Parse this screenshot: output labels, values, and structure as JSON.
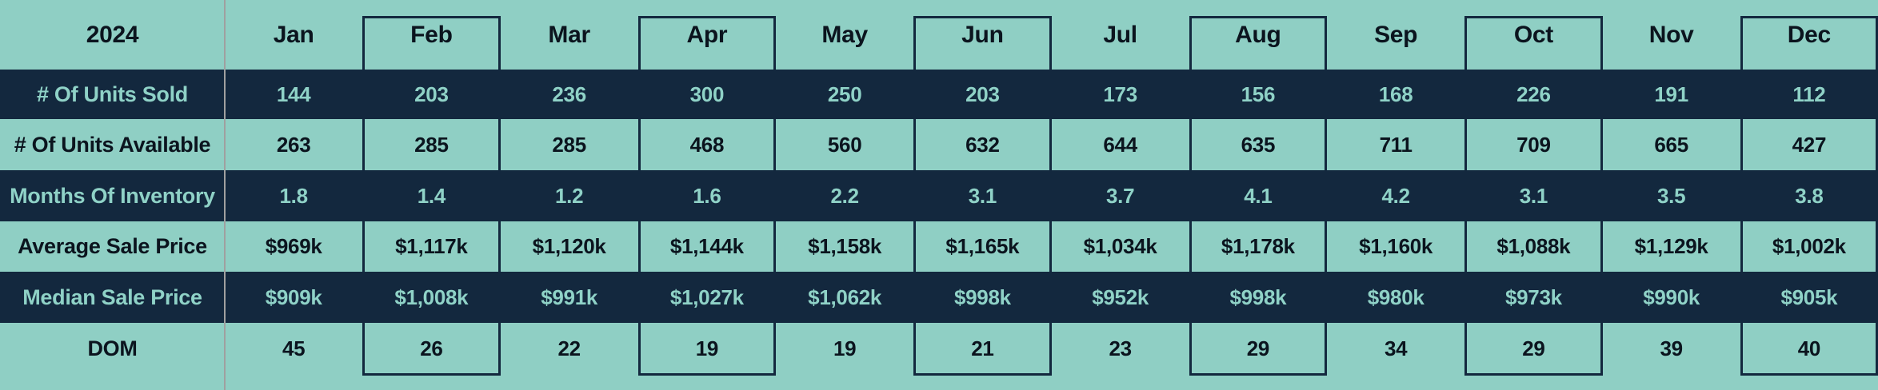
{
  "table": {
    "year_label": "2024",
    "months": [
      "Jan",
      "Feb",
      "Mar",
      "Apr",
      "May",
      "Jun",
      "Jul",
      "Aug",
      "Sep",
      "Oct",
      "Nov",
      "Dec"
    ],
    "rows": [
      {
        "label": "# Of Units Sold",
        "theme": "dark",
        "values": [
          "144",
          "203",
          "236",
          "300",
          "250",
          "203",
          "173",
          "156",
          "168",
          "226",
          "191",
          "112"
        ]
      },
      {
        "label": "# Of Units Available",
        "theme": "light",
        "values": [
          "263",
          "285",
          "285",
          "468",
          "560",
          "632",
          "644",
          "635",
          "711",
          "709",
          "665",
          "427"
        ]
      },
      {
        "label": "Months Of Inventory",
        "theme": "dark",
        "values": [
          "1.8",
          "1.4",
          "1.2",
          "1.6",
          "2.2",
          "3.1",
          "3.7",
          "4.1",
          "4.2",
          "3.1",
          "3.5",
          "3.8"
        ]
      },
      {
        "label": "Average Sale Price",
        "theme": "light",
        "values": [
          "$969k",
          "$1,117k",
          "$1,120k",
          "$1,144k",
          "$1,158k",
          "$1,165k",
          "$1,034k",
          "$1,178k",
          "$1,160k",
          "$1,088k",
          "$1,129k",
          "$1,002k"
        ]
      },
      {
        "label": "Median Sale Price",
        "theme": "dark",
        "values": [
          "$909k",
          "$1,008k",
          "$991k",
          "$1,027k",
          "$1,062k",
          "$998k",
          "$952k",
          "$998k",
          "$980k",
          "$973k",
          "$990k",
          "$905k"
        ]
      },
      {
        "label": "DOM",
        "theme": "light",
        "values": [
          "45",
          "26",
          "22",
          "19",
          "19",
          "21",
          "23",
          "29",
          "34",
          "29",
          "39",
          "40"
        ]
      }
    ],
    "highlighted_months": [
      "Feb",
      "Apr",
      "Jun",
      "Aug",
      "Oct",
      "Dec"
    ],
    "highlighted_month_indexes": [
      1,
      3,
      5,
      7,
      9,
      11
    ],
    "colors": {
      "light_bg": "#8FCFC4",
      "dark_bg": "#13283E",
      "teal_text": "#8FD2C7",
      "dark_text": "#0B141E",
      "divider_gray": "#A0A0A0"
    }
  },
  "chart_data": {
    "type": "table",
    "title": "2024",
    "categories": [
      "Jan",
      "Feb",
      "Mar",
      "Apr",
      "May",
      "Jun",
      "Jul",
      "Aug",
      "Sep",
      "Oct",
      "Nov",
      "Dec"
    ],
    "series": [
      {
        "name": "# Of Units Sold",
        "values": [
          144,
          203,
          236,
          300,
          250,
          203,
          173,
          156,
          168,
          226,
          191,
          112
        ]
      },
      {
        "name": "# Of Units Available",
        "values": [
          263,
          285,
          285,
          468,
          560,
          632,
          644,
          635,
          711,
          709,
          665,
          427
        ]
      },
      {
        "name": "Months Of Inventory",
        "values": [
          1.8,
          1.4,
          1.2,
          1.6,
          2.2,
          3.1,
          3.7,
          4.1,
          4.2,
          3.1,
          3.5,
          3.8
        ]
      },
      {
        "name": "Average Sale Price ($k)",
        "values": [
          969,
          1117,
          1120,
          1144,
          1158,
          1165,
          1034,
          1178,
          1160,
          1088,
          1129,
          1002
        ]
      },
      {
        "name": "Median Sale Price ($k)",
        "values": [
          909,
          1008,
          991,
          1027,
          1062,
          998,
          952,
          998,
          980,
          973,
          990,
          905
        ]
      },
      {
        "name": "DOM",
        "values": [
          45,
          26,
          22,
          19,
          19,
          21,
          23,
          29,
          34,
          29,
          39,
          40
        ]
      }
    ],
    "layout_hints": {
      "row_striping": [
        "light-header",
        "dark",
        "light",
        "dark",
        "light",
        "dark",
        "light"
      ],
      "boxed_columns": [
        "Feb",
        "Apr",
        "Jun",
        "Aug",
        "Oct",
        "Dec"
      ],
      "grid": "off"
    }
  }
}
